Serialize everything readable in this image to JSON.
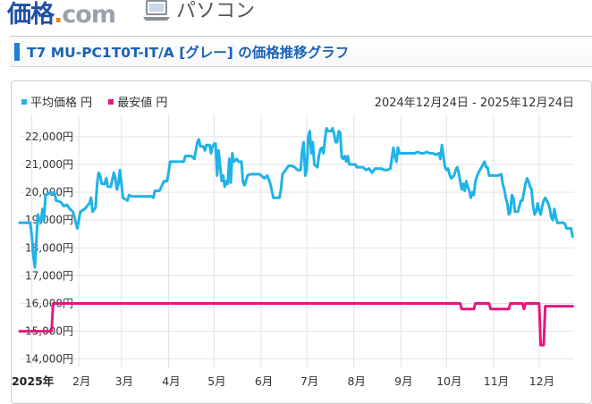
{
  "header": {
    "logo_main": "価格",
    "logo_dot": ".",
    "logo_com": "com",
    "category_icon": "laptop-icon",
    "category_label": "パソコン"
  },
  "title_bar": {
    "title": "T7 MU-PC1T0T-IT/A [グレー] の価格推移グラフ"
  },
  "colors": {
    "avg": "#1fb3e8",
    "min": "#e6177f",
    "accent": "#1e7fd8",
    "title_text": "#1a62b8"
  },
  "chart_data": {
    "type": "line",
    "date_range": "2024年12月24日 - 2025年12月24日",
    "ylim": [
      13700,
      22800
    ],
    "y_ticks": [
      "14,000円",
      "15,000円",
      "16,000円",
      "17,000円",
      "18,000円",
      "19,000円",
      "20,000円",
      "21,000円",
      "22,000円"
    ],
    "y_tick_values": [
      14000,
      15000,
      16000,
      17000,
      18000,
      19000,
      20000,
      21000,
      22000
    ],
    "x_range_days": [
      0,
      365
    ],
    "x_ticks": [
      {
        "label": "2025年",
        "day": 8,
        "bold": true
      },
      {
        "label": "2月",
        "day": 39
      },
      {
        "label": "3月",
        "day": 67
      },
      {
        "label": "4月",
        "day": 98
      },
      {
        "label": "5月",
        "day": 128
      },
      {
        "label": "6月",
        "day": 159
      },
      {
        "label": "7月",
        "day": 189
      },
      {
        "label": "8月",
        "day": 220
      },
      {
        "label": "9月",
        "day": 251
      },
      {
        "label": "10月",
        "day": 281
      },
      {
        "label": "11月",
        "day": 312
      },
      {
        "label": "12月",
        "day": 342
      }
    ],
    "grid": true,
    "legend_position": "top-left",
    "series": [
      {
        "name": "平均価格 円",
        "color": "#1fb3e8",
        "points": [
          [
            0,
            18900
          ],
          [
            7,
            18900
          ],
          [
            8,
            18400
          ],
          [
            9,
            17700
          ],
          [
            10,
            17300
          ],
          [
            11,
            18300
          ],
          [
            12,
            19200
          ],
          [
            13,
            19000
          ],
          [
            14,
            18900
          ],
          [
            15,
            19400
          ],
          [
            16,
            19000
          ],
          [
            17,
            19900
          ],
          [
            19,
            19950
          ],
          [
            21,
            20000
          ],
          [
            23,
            19950
          ],
          [
            24,
            19700
          ],
          [
            27,
            19650
          ],
          [
            29,
            19500
          ],
          [
            31,
            19550
          ],
          [
            33,
            19400
          ],
          [
            35,
            19300
          ],
          [
            37,
            18900
          ],
          [
            38,
            18700
          ],
          [
            39,
            19000
          ],
          [
            40,
            19300
          ],
          [
            43,
            19400
          ],
          [
            45,
            19550
          ],
          [
            46,
            19600
          ],
          [
            47,
            19800
          ],
          [
            48,
            19300
          ],
          [
            50,
            19450
          ],
          [
            51,
            20300
          ],
          [
            52,
            20700
          ],
          [
            53,
            20600
          ],
          [
            54,
            20300
          ],
          [
            56,
            20300
          ],
          [
            57,
            20500
          ],
          [
            58,
            20200
          ],
          [
            60,
            20200
          ],
          [
            62,
            20700
          ],
          [
            63,
            20500
          ],
          [
            64,
            20100
          ],
          [
            65,
            20300
          ],
          [
            66,
            20800
          ],
          [
            67,
            20300
          ],
          [
            68,
            19800
          ],
          [
            71,
            19700
          ],
          [
            72,
            19900
          ],
          [
            74,
            19850
          ],
          [
            77,
            19850
          ],
          [
            80,
            19850
          ],
          [
            81,
            19850
          ],
          [
            84,
            19850
          ],
          [
            86,
            19850
          ],
          [
            87,
            19850
          ],
          [
            88,
            19800
          ],
          [
            89,
            20050
          ],
          [
            92,
            20050
          ],
          [
            95,
            20400
          ],
          [
            97,
            20400
          ],
          [
            98,
            20700
          ],
          [
            99,
            21100
          ],
          [
            101,
            21100
          ],
          [
            104,
            21100
          ],
          [
            106,
            21100
          ],
          [
            108,
            21100
          ],
          [
            109,
            21300
          ],
          [
            111,
            21300
          ],
          [
            113,
            21300
          ],
          [
            115,
            21200
          ],
          [
            116,
            21500
          ],
          [
            117,
            21800
          ],
          [
            118,
            21900
          ],
          [
            119,
            21650
          ],
          [
            121,
            21650
          ],
          [
            122,
            21500
          ],
          [
            123,
            21700
          ],
          [
            125,
            21700
          ],
          [
            126,
            21400
          ],
          [
            127,
            21650
          ],
          [
            128,
            21750
          ],
          [
            129,
            21750
          ],
          [
            130,
            20600
          ],
          [
            131,
            21500
          ],
          [
            132,
            20900
          ],
          [
            133,
            20400
          ],
          [
            134,
            20600
          ],
          [
            135,
            20200
          ],
          [
            136,
            20400
          ],
          [
            137,
            20300
          ],
          [
            138,
            21200
          ],
          [
            139,
            20350
          ],
          [
            140,
            21400
          ],
          [
            141,
            21100
          ],
          [
            142,
            21150
          ],
          [
            143,
            21200
          ],
          [
            144,
            21100
          ],
          [
            146,
            21100
          ],
          [
            147,
            20350
          ],
          [
            148,
            20250
          ],
          [
            150,
            20600
          ],
          [
            152,
            20650
          ],
          [
            154,
            20650
          ],
          [
            156,
            20650
          ],
          [
            158,
            20650
          ],
          [
            159,
            20600
          ],
          [
            161,
            20500
          ],
          [
            163,
            20600
          ],
          [
            165,
            20300
          ],
          [
            167,
            19800
          ],
          [
            169,
            19800
          ],
          [
            171,
            19800
          ],
          [
            172,
            20100
          ],
          [
            173,
            20650
          ],
          [
            175,
            20800
          ],
          [
            177,
            20950
          ],
          [
            179,
            20950
          ],
          [
            181,
            20900
          ],
          [
            183,
            20800
          ],
          [
            185,
            20800
          ],
          [
            186,
            21500
          ],
          [
            187,
            21800
          ],
          [
            188,
            20600
          ],
          [
            189,
            20800
          ],
          [
            190,
            22000
          ],
          [
            191,
            22200
          ],
          [
            192,
            21400
          ],
          [
            193,
            21800
          ],
          [
            194,
            21000
          ],
          [
            196,
            20900
          ],
          [
            197,
            21300
          ],
          [
            198,
            21550
          ],
          [
            199,
            21600
          ],
          [
            200,
            21400
          ],
          [
            201,
            21900
          ],
          [
            202,
            22300
          ],
          [
            203,
            22200
          ],
          [
            205,
            22200
          ],
          [
            206,
            22300
          ],
          [
            207,
            22100
          ],
          [
            208,
            21800
          ],
          [
            209,
            21800
          ],
          [
            210,
            22200
          ],
          [
            211,
            22150
          ],
          [
            212,
            21250
          ],
          [
            213,
            21200
          ],
          [
            214,
            21300
          ],
          [
            215,
            21100
          ],
          [
            216,
            21300
          ],
          [
            217,
            21000
          ],
          [
            219,
            21000
          ],
          [
            221,
            21000
          ],
          [
            222,
            20900
          ],
          [
            224,
            20900
          ],
          [
            226,
            20900
          ],
          [
            228,
            20800
          ],
          [
            230,
            20850
          ],
          [
            232,
            20700
          ],
          [
            234,
            20850
          ],
          [
            236,
            20850
          ],
          [
            238,
            20850
          ],
          [
            240,
            20800
          ],
          [
            242,
            20800
          ],
          [
            244,
            20850
          ],
          [
            246,
            21600
          ],
          [
            247,
            21250
          ],
          [
            248,
            21100
          ],
          [
            249,
            21600
          ],
          [
            250,
            21400
          ],
          [
            252,
            21400
          ],
          [
            254,
            21400
          ],
          [
            256,
            21400
          ],
          [
            258,
            21400
          ],
          [
            260,
            21400
          ],
          [
            262,
            21450
          ],
          [
            264,
            21400
          ],
          [
            266,
            21400
          ],
          [
            268,
            21450
          ],
          [
            270,
            21400
          ],
          [
            272,
            21400
          ],
          [
            274,
            21350
          ],
          [
            276,
            21400
          ],
          [
            277,
            21200
          ],
          [
            278,
            21700
          ],
          [
            279,
            21300
          ],
          [
            280,
            20900
          ],
          [
            281,
            20800
          ],
          [
            282,
            20850
          ],
          [
            283,
            20650
          ],
          [
            284,
            20500
          ],
          [
            286,
            20600
          ],
          [
            287,
            20800
          ],
          [
            288,
            20900
          ],
          [
            289,
            20700
          ],
          [
            290,
            20400
          ],
          [
            291,
            20100
          ],
          [
            292,
            20300
          ],
          [
            293,
            20050
          ],
          [
            294,
            20400
          ],
          [
            295,
            20200
          ],
          [
            296,
            20050
          ],
          [
            297,
            19800
          ],
          [
            298,
            20000
          ],
          [
            299,
            19900
          ],
          [
            300,
            20400
          ],
          [
            302,
            20700
          ],
          [
            304,
            20900
          ],
          [
            306,
            21100
          ],
          [
            307,
            20900
          ],
          [
            308,
            20900
          ],
          [
            309,
            20600
          ],
          [
            311,
            20600
          ],
          [
            313,
            20600
          ],
          [
            315,
            20600
          ],
          [
            317,
            20650
          ],
          [
            318,
            20300
          ],
          [
            319,
            20100
          ],
          [
            320,
            19800
          ],
          [
            321,
            19600
          ],
          [
            322,
            19200
          ],
          [
            323,
            19300
          ],
          [
            324,
            19900
          ],
          [
            325,
            19800
          ],
          [
            326,
            19300
          ],
          [
            328,
            19300
          ],
          [
            330,
            19700
          ],
          [
            331,
            19700
          ],
          [
            332,
            20000
          ],
          [
            333,
            20300
          ],
          [
            334,
            20500
          ],
          [
            335,
            20400
          ],
          [
            336,
            20200
          ],
          [
            337,
            20100
          ],
          [
            338,
            19500
          ],
          [
            339,
            19200
          ],
          [
            340,
            19300
          ],
          [
            341,
            19600
          ],
          [
            342,
            19350
          ],
          [
            343,
            19200
          ],
          [
            344,
            19500
          ],
          [
            345,
            19700
          ],
          [
            346,
            19800
          ],
          [
            347,
            19700
          ],
          [
            348,
            19600
          ],
          [
            349,
            19400
          ],
          [
            350,
            19100
          ],
          [
            351,
            19000
          ],
          [
            352,
            19400
          ],
          [
            353,
            19100
          ],
          [
            354,
            18900
          ],
          [
            356,
            18900
          ],
          [
            358,
            18900
          ],
          [
            359,
            18850
          ],
          [
            360,
            18700
          ],
          [
            361,
            18700
          ],
          [
            363,
            18700
          ],
          [
            364,
            18400
          ]
        ]
      },
      {
        "name": "最安値 円",
        "color": "#e6177f",
        "points": [
          [
            0,
            15000
          ],
          [
            21,
            15000
          ],
          [
            22,
            16000
          ],
          [
            53,
            16000
          ],
          [
            54,
            16000
          ],
          [
            290,
            16000
          ],
          [
            291,
            15800
          ],
          [
            299,
            15800
          ],
          [
            300,
            16000
          ],
          [
            309,
            16000
          ],
          [
            310,
            15800
          ],
          [
            322,
            15800
          ],
          [
            323,
            16000
          ],
          [
            331,
            16000
          ],
          [
            332,
            15800
          ],
          [
            333,
            16000
          ],
          [
            342,
            16000
          ],
          [
            343,
            14500
          ],
          [
            345,
            14500
          ],
          [
            346,
            15900
          ],
          [
            364,
            15900
          ]
        ]
      }
    ]
  }
}
